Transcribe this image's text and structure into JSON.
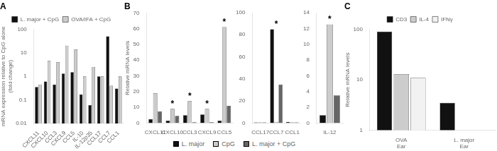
{
  "chart_data": [
    {
      "type": "bar",
      "title": "A",
      "categories": [
        "CXCL11",
        "CXCL10",
        "CCL3",
        "CXCL9",
        "CCL5",
        "IL-10",
        "IL-12p35",
        "CCL17",
        "CCL7",
        "CCL1"
      ],
      "series": [
        {
          "name": "L. major + CpG",
          "color": "#111111",
          "values": [
            0.35,
            0.6,
            0.45,
            1.3,
            1.5,
            0.17,
            0.06,
            1.0,
            50,
            0.3
          ]
        },
        {
          "name": "OVA/IFA + CpG",
          "color": "#cccccc",
          "values": [
            0.45,
            4.5,
            4.0,
            20,
            14,
            1.0,
            2.5,
            1.0,
            0.4,
            1.0
          ]
        }
      ],
      "ylabel": "mRNA expression relative to CpG alone\n(fold change)",
      "log": "y",
      "ylim": [
        0.01,
        100
      ],
      "yticks": [
        0.01,
        0.1,
        1,
        10,
        100
      ],
      "grid": false,
      "legend": "top"
    },
    {
      "type": "bar",
      "title": "B",
      "categories": [
        "CXCL11",
        "CXCL10",
        "CCL3",
        "CXCL9",
        "CCL5"
      ],
      "series": [
        {
          "name": "L. major",
          "color": "#111111",
          "values": [
            2.5,
            1.5,
            5.0,
            5.5,
            1.5
          ]
        },
        {
          "name": "CpG",
          "color": "#cccccc",
          "values": [
            19,
            9,
            14,
            9,
            61
          ]
        },
        {
          "name": "L. major + CpG",
          "color": "#666666",
          "values": [
            7.5,
            4.5,
            0.5,
            0.5,
            11
          ]
        }
      ],
      "ylabel": "Relative mRNA levels",
      "ylim": [
        0,
        70
      ],
      "yticks": [
        0,
        10,
        20,
        30,
        40,
        50,
        60,
        70
      ],
      "grid": false,
      "legend": "bottom",
      "annotations": [
        {
          "text": "*",
          "x": "CXCL10"
        },
        {
          "text": "*",
          "x": "CCL3"
        },
        {
          "text": "*",
          "x": "CXCL9"
        },
        {
          "text": "*",
          "x": "CCL5"
        }
      ]
    },
    {
      "type": "bar",
      "categories": [
        "CCL17",
        "CCL7",
        "CCL1"
      ],
      "series": [
        {
          "color": "#111111",
          "values": [
            0.5,
            85,
            1.0
          ]
        },
        {
          "color": "#cccccc",
          "values": [
            0.5,
            1,
            0.5
          ]
        },
        {
          "color": "#666666",
          "values": [
            0.5,
            35,
            0.5
          ]
        }
      ],
      "ylim": [
        0,
        100
      ],
      "yticks": [
        0,
        20,
        40,
        60,
        80,
        100
      ],
      "grid": false,
      "annotations": [
        {
          "text": "*",
          "x": "CCL7"
        }
      ]
    },
    {
      "type": "bar",
      "categories": [
        "IL-12"
      ],
      "series": [
        {
          "color": "#111111",
          "values": [
            1.0
          ]
        },
        {
          "color": "#cccccc",
          "values": [
            12.5
          ]
        },
        {
          "color": "#666666",
          "values": [
            3.5
          ]
        }
      ],
      "ylim": [
        0,
        14
      ],
      "yticks": [
        0,
        2,
        4,
        6,
        8,
        10,
        12,
        14
      ],
      "grid": false,
      "annotations": [
        {
          "text": "*",
          "x": "IL-12"
        }
      ]
    },
    {
      "type": "bar",
      "title": "C",
      "categories": [
        "OVA\nEar",
        "L. major\nEar"
      ],
      "series": [
        {
          "name": "CD3",
          "color": "#111111",
          "values": [
            90,
            3.5
          ]
        },
        {
          "name": "IL-4",
          "color": "#cccccc",
          "values": [
            13,
            1.0
          ]
        },
        {
          "name": "IFNγ",
          "color": "#f2f2f2",
          "values": [
            11,
            1.0
          ]
        }
      ],
      "ylabel": "Relative mRNA levels",
      "log": "y",
      "ylim": [
        1,
        100
      ],
      "yticks": [
        1,
        10,
        100
      ],
      "grid": false,
      "legend": "top"
    }
  ]
}
